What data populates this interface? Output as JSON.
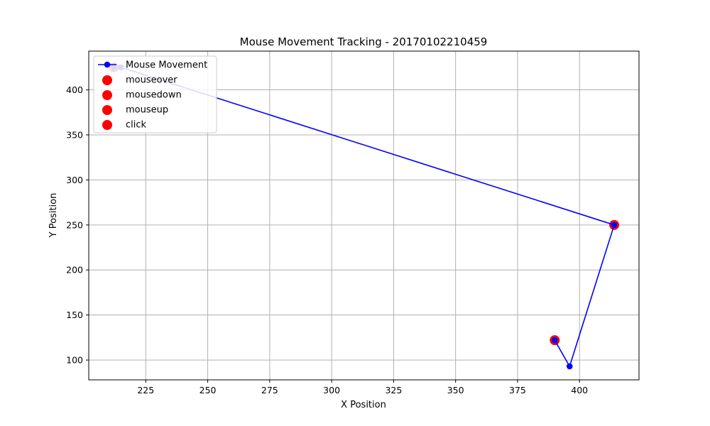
{
  "chart_data": {
    "type": "line",
    "title": "Mouse Movement Tracking - 20170102210459",
    "xlabel": "X Position",
    "ylabel": "Y Position",
    "xlim": [
      202,
      424
    ],
    "ylim": [
      443,
      78
    ],
    "y_inverted": true,
    "grid": true,
    "legend_position": "top-left",
    "xticks": [
      225,
      250,
      275,
      300,
      325,
      350,
      375,
      400
    ],
    "yticks": [
      100,
      150,
      200,
      250,
      300,
      350,
      400
    ],
    "series": [
      {
        "name": "Mouse Movement",
        "kind": "line",
        "color": "#0000ff",
        "points": [
          [
            212,
            425
          ],
          [
            215,
            425
          ],
          [
            414,
            250
          ],
          [
            396,
            93
          ],
          [
            390,
            122
          ]
        ]
      }
    ],
    "events": [
      {
        "name": "mouseover",
        "color": "#ff0000",
        "points": [
          [
            212,
            425
          ]
        ]
      },
      {
        "name": "mousedown",
        "color": "#ff0000",
        "points": [
          [
            414,
            250
          ]
        ]
      },
      {
        "name": "mouseup",
        "color": "#ff0000",
        "points": [
          [
            390,
            122
          ]
        ]
      },
      {
        "name": "click",
        "color": "#ff0000",
        "points": []
      }
    ]
  }
}
